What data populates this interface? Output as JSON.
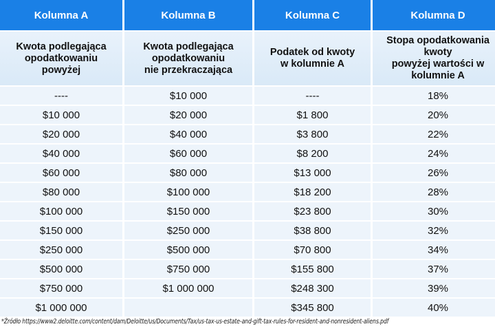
{
  "table": {
    "headers": [
      "Kolumna A",
      "Kolumna B",
      "Kolumna C",
      "Kolumna D"
    ],
    "subheaders": [
      "Kwota podlegająca\nopodatkowaniu\npowyżej",
      "Kwota podlegająca\nopodatkowaniu\nnie przekraczająca",
      "Podatek od kwoty\nw kolumnie A",
      "Stopa opodatkowania\nkwoty\npowyżej wartości w\nkolumnie A"
    ],
    "rows": [
      [
        "----",
        "$10 000",
        "----",
        "18%"
      ],
      [
        "$10 000",
        "$20 000",
        "$1 800",
        "20%"
      ],
      [
        "$20 000",
        "$40 000",
        "$3 800",
        "22%"
      ],
      [
        "$40 000",
        "$60 000",
        "$8 200",
        "24%"
      ],
      [
        "$60 000",
        "$80 000",
        "$13 000",
        "26%"
      ],
      [
        "$80 000",
        "$100 000",
        "$18 200",
        "28%"
      ],
      [
        "$100 000",
        "$150 000",
        "$23 800",
        "30%"
      ],
      [
        "$150 000",
        "$250 000",
        "$38 800",
        "32%"
      ],
      [
        "$250 000",
        "$500 000",
        "$70 800",
        "34%"
      ],
      [
        "$500 000",
        "$750 000",
        "$155 800",
        "37%"
      ],
      [
        "$750 000",
        "$1 000 000",
        "$248 300",
        "39%"
      ],
      [
        "$1 000 000",
        "",
        "$345 800",
        "40%"
      ]
    ]
  },
  "source": "*Źródło https://www2.deloitte.com/content/dam/Deloitte/us/Documents/Tax/us-tax-us-estate-and-gift-tax-rules-for-resident-and-nonresident-aliens.pdf",
  "colors": {
    "header": "#1a80e6",
    "subheader": "#dde9f6",
    "cell": "#edf4fb"
  }
}
